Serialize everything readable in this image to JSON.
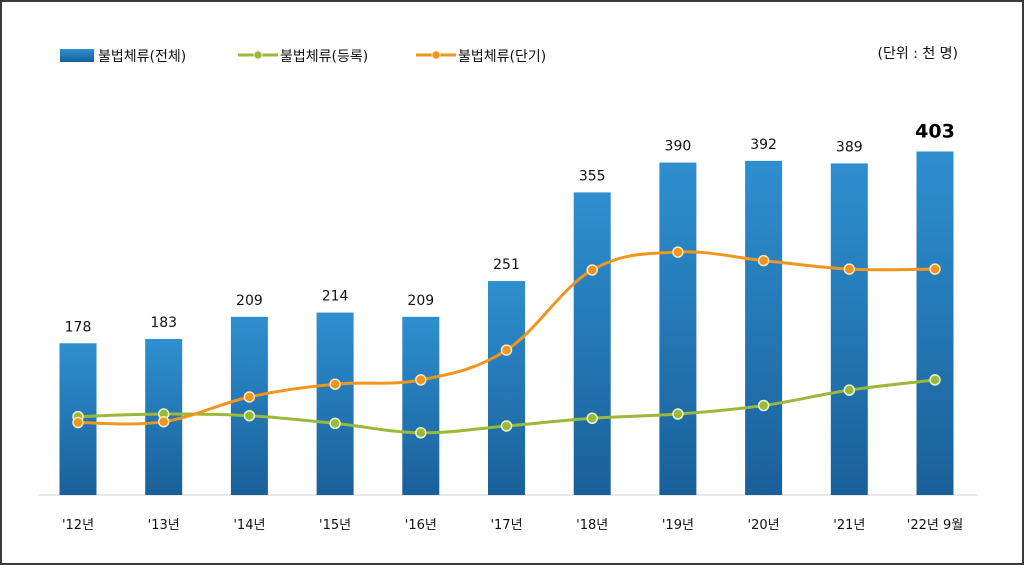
{
  "chart_data": {
    "type": "bar",
    "unit_note": "(단위 : 천 명)",
    "categories": [
      "'12년",
      "'13년",
      "'14년",
      "'15년",
      "'16년",
      "'17년",
      "'18년",
      "'19년",
      "'20년",
      "'21년",
      "'22년 9월"
    ],
    "series": [
      {
        "name": "불법체류(전체)",
        "kind": "bar",
        "color": "#1f78b4",
        "values": [
          178,
          183,
          209,
          214,
          209,
          251,
          355,
          390,
          392,
          389,
          403
        ]
      },
      {
        "name": "불법체류(등록)",
        "kind": "line",
        "color": "#9ab83a",
        "values": [
          92,
          95,
          93,
          84,
          73,
          81,
          90,
          95,
          105,
          123,
          135
        ]
      },
      {
        "name": "불법체류(단기)",
        "kind": "line",
        "color": "#f0961e",
        "values": [
          85,
          86,
          115,
          130,
          135,
          170,
          264,
          285,
          275,
          265,
          265
        ]
      }
    ],
    "ylim": [
      0,
      420
    ],
    "grid": false,
    "legend": "top-left"
  }
}
